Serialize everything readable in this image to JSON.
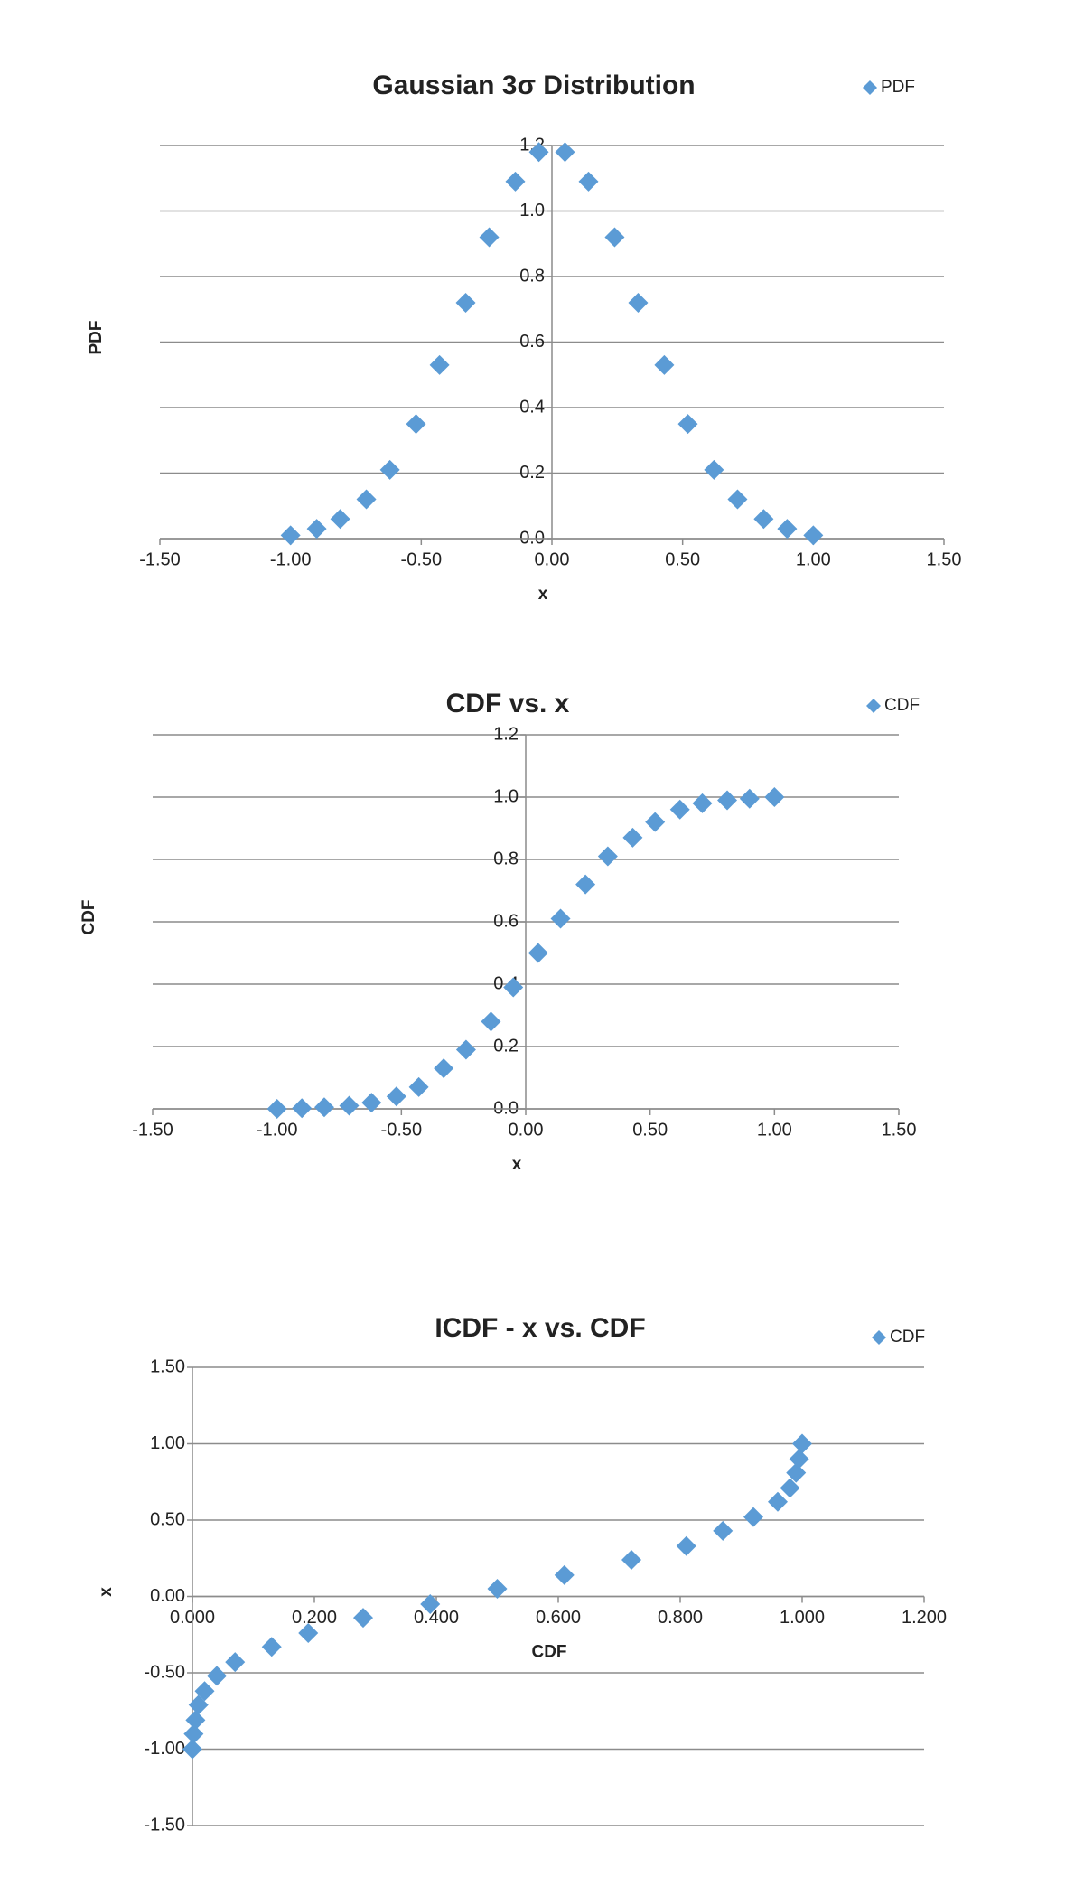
{
  "chart_data": [
    {
      "type": "scatter",
      "title": "Gaussian 3σ Distribution",
      "x_label": "x",
      "y_label": "PDF",
      "legend": "top-right",
      "grid": true,
      "series": [
        {
          "name": "PDF",
          "color": "#5b9bd5",
          "x": [
            -1.0,
            -0.9,
            -0.81,
            -0.71,
            -0.62,
            -0.52,
            -0.43,
            -0.33,
            -0.24,
            -0.14,
            -0.05,
            0.05,
            0.14,
            0.24,
            0.33,
            0.43,
            0.52,
            0.62,
            0.71,
            0.81,
            0.9,
            1.0
          ],
          "values": [
            0.01,
            0.03,
            0.06,
            0.12,
            0.21,
            0.35,
            0.53,
            0.72,
            0.92,
            1.09,
            1.18,
            1.18,
            1.09,
            0.92,
            0.72,
            0.53,
            0.35,
            0.21,
            0.12,
            0.06,
            0.03,
            0.01
          ]
        }
      ],
      "xlim": [
        -1.5,
        1.5
      ],
      "ylim": [
        0,
        1.2
      ],
      "xticks": [
        {
          "value": -1.5,
          "label": "-1.50"
        },
        {
          "value": -1,
          "label": "-1.00"
        },
        {
          "value": -0.5,
          "label": "-0.50"
        },
        {
          "value": 0,
          "label": "0.00"
        },
        {
          "value": 0.5,
          "label": "0.50"
        },
        {
          "value": 1,
          "label": "1.00"
        },
        {
          "value": 1.5,
          "label": "1.50"
        }
      ],
      "yticks": [
        {
          "value": 0,
          "label": "0.0"
        },
        0.2,
        0.4,
        0.6,
        0.8,
        {
          "value": 1,
          "label": "1.0"
        },
        1.2
      ]
    },
    {
      "type": "scatter",
      "title": "CDF vs. x",
      "x_label": "x",
      "y_label": "CDF",
      "legend": "top-right",
      "grid": true,
      "series": [
        {
          "name": "CDF",
          "color": "#5b9bd5",
          "x": [
            -1.0,
            -0.9,
            -0.81,
            -0.71,
            -0.62,
            -0.52,
            -0.43,
            -0.33,
            -0.24,
            -0.14,
            -0.05,
            0.05,
            0.14,
            0.24,
            0.33,
            0.43,
            0.52,
            0.62,
            0.71,
            0.81,
            0.9,
            1.0
          ],
          "values": [
            0.0,
            0.002,
            0.005,
            0.01,
            0.02,
            0.04,
            0.07,
            0.13,
            0.19,
            0.28,
            0.39,
            0.5,
            0.61,
            0.72,
            0.81,
            0.87,
            0.92,
            0.96,
            0.98,
            0.99,
            0.995,
            1.0
          ]
        }
      ],
      "xlim": [
        -1.5,
        1.5
      ],
      "ylim": [
        0,
        1.2
      ],
      "xticks": [
        {
          "value": -1.5,
          "label": "-1.50"
        },
        {
          "value": -1,
          "label": "-1.00"
        },
        {
          "value": -0.5,
          "label": "-0.50"
        },
        {
          "value": 0,
          "label": "0.00"
        },
        {
          "value": 0.5,
          "label": "0.50"
        },
        {
          "value": 1,
          "label": "1.00"
        },
        {
          "value": 1.5,
          "label": "1.50"
        }
      ],
      "yticks": [
        {
          "value": 0,
          "label": "0.0"
        },
        0.2,
        0.4,
        0.6,
        0.8,
        {
          "value": 1,
          "label": "1.0"
        },
        1.2
      ]
    },
    {
      "type": "scatter",
      "title": "ICDF - x vs. CDF",
      "x_label": "CDF",
      "y_label": "x",
      "legend": "top-right",
      "grid": true,
      "series": [
        {
          "name": "CDF",
          "color": "#5b9bd5",
          "x": [
            0.0,
            0.002,
            0.005,
            0.01,
            0.02,
            0.04,
            0.07,
            0.13,
            0.19,
            0.28,
            0.39,
            0.5,
            0.61,
            0.72,
            0.81,
            0.87,
            0.92,
            0.96,
            0.98,
            0.99,
            0.995,
            1.0
          ],
          "values": [
            -1.0,
            -0.9,
            -0.81,
            -0.71,
            -0.62,
            -0.52,
            -0.43,
            -0.33,
            -0.24,
            -0.14,
            -0.05,
            0.05,
            0.14,
            0.24,
            0.33,
            0.43,
            0.52,
            0.62,
            0.71,
            0.81,
            0.9,
            1.0
          ]
        }
      ],
      "xlim": [
        0,
        1.2
      ],
      "ylim": [
        -1.5,
        1.5
      ],
      "xticks": [
        {
          "value": 0,
          "label": "0.000"
        },
        {
          "value": 0.2,
          "label": "0.200"
        },
        {
          "value": 0.4,
          "label": "0.400"
        },
        {
          "value": 0.6,
          "label": "0.600"
        },
        {
          "value": 0.8,
          "label": "0.800"
        },
        {
          "value": 1,
          "label": "1.000"
        },
        {
          "value": 1.2,
          "label": "1.200"
        }
      ],
      "yticks": [
        {
          "value": -1.5,
          "label": "-1.50"
        },
        {
          "value": -1,
          "label": "-1.00"
        },
        {
          "value": -0.5,
          "label": "-0.50"
        },
        {
          "value": 0,
          "label": "0.00"
        },
        {
          "value": 0.5,
          "label": "0.50"
        },
        {
          "value": 1,
          "label": "1.00"
        },
        {
          "value": 1.5,
          "label": "1.50"
        }
      ]
    }
  ]
}
